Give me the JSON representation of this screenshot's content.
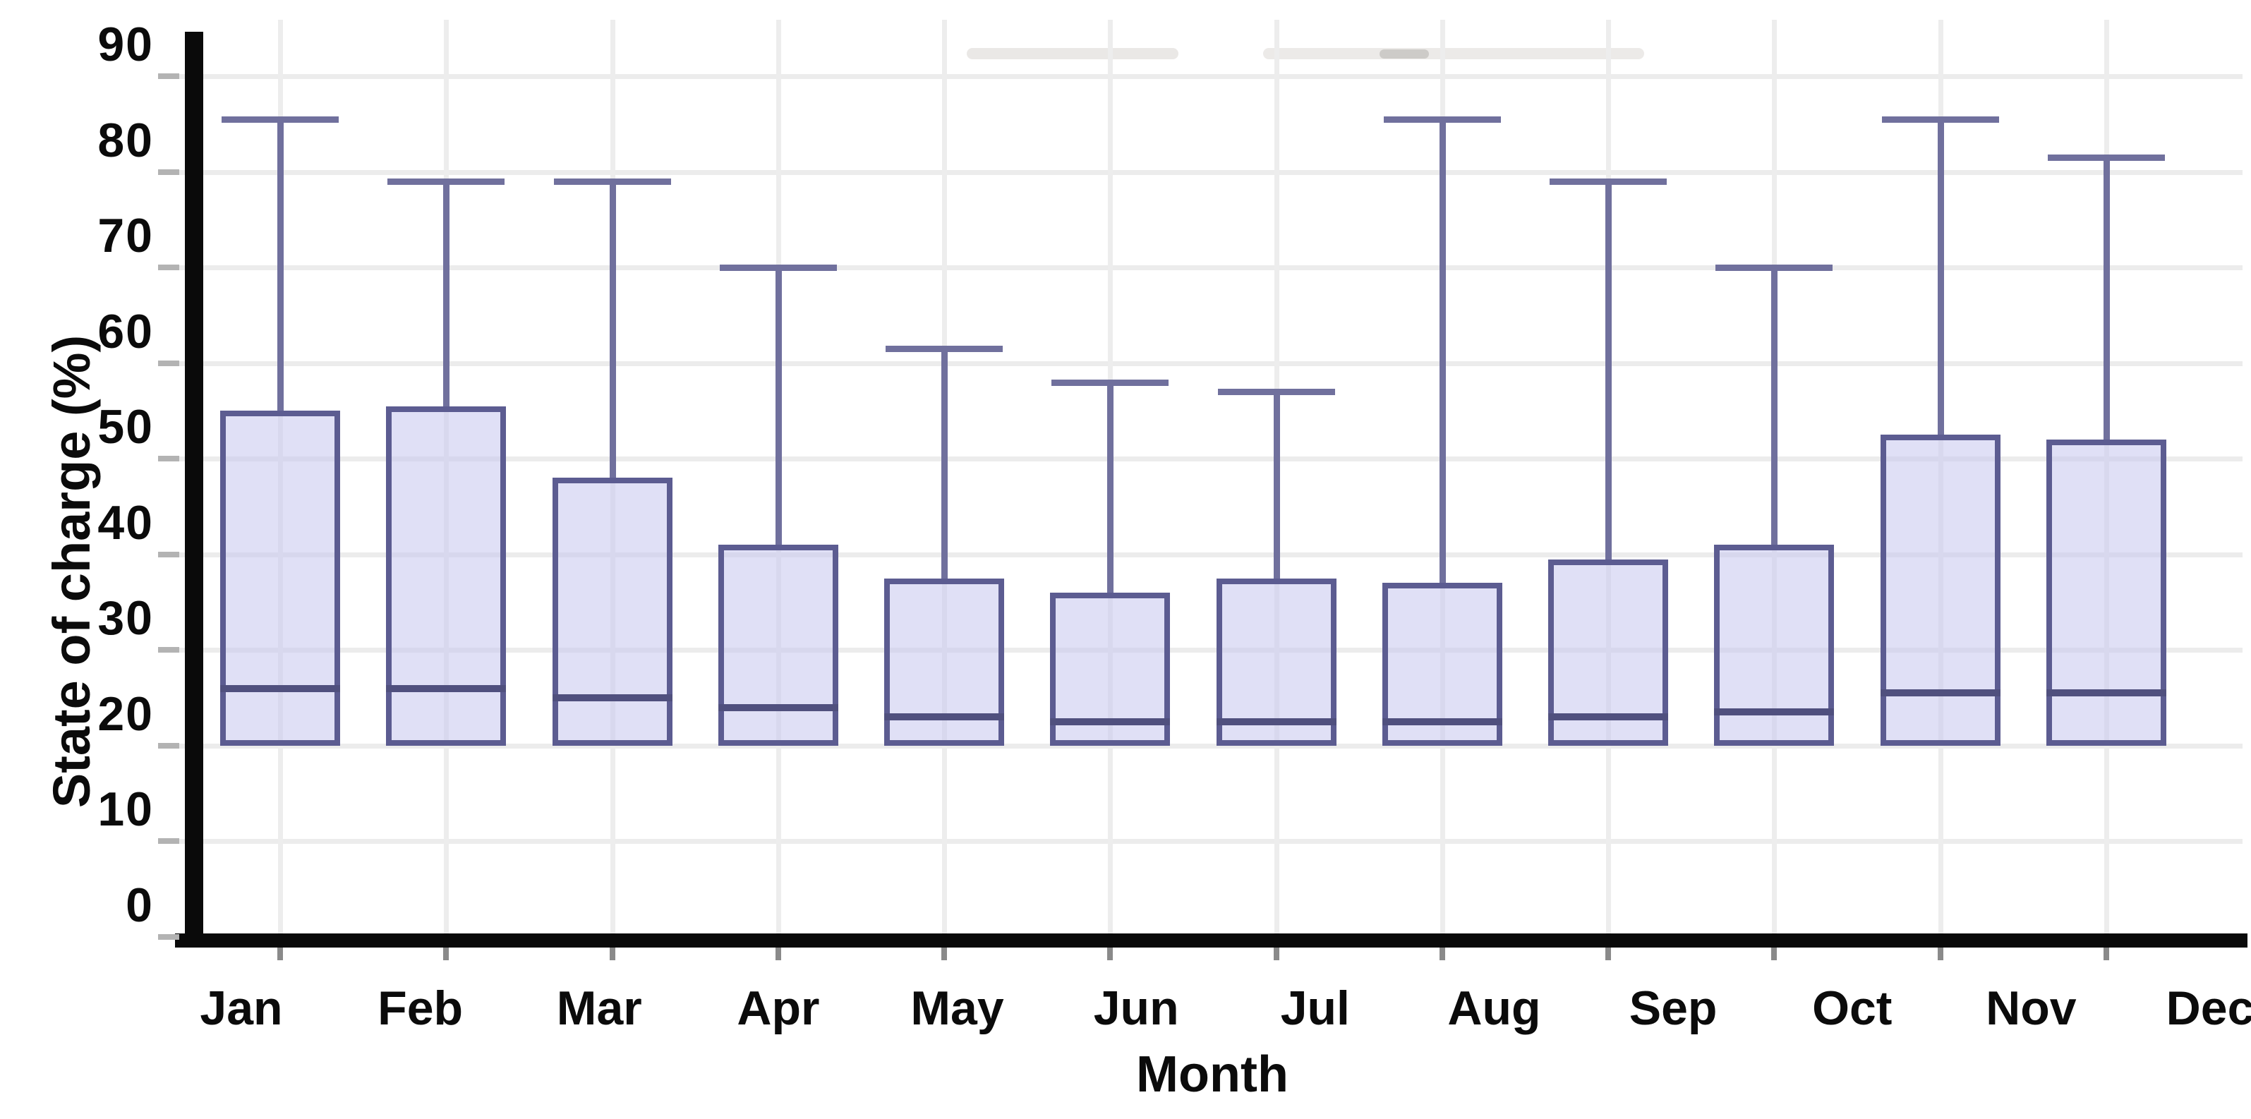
{
  "chart_data": {
    "type": "box",
    "title": "",
    "xlabel": "Month",
    "ylabel": "State of charge (%)",
    "ylim": [
      0,
      90
    ],
    "yticks": [
      0,
      10,
      20,
      30,
      40,
      50,
      60,
      70,
      80,
      90
    ],
    "categories": [
      "Jan",
      "Feb",
      "Mar",
      "Apr",
      "May",
      "Jun",
      "Jul",
      "Aug",
      "Sep",
      "Oct",
      "Nov",
      "Dec"
    ],
    "grid": "both",
    "legend": "none",
    "series": [
      {
        "name": "State of charge",
        "boxes": [
          {
            "month": "Jan",
            "min": 20,
            "q1": 20,
            "median": 26,
            "q3": 55,
            "max": 85.5
          },
          {
            "month": "Feb",
            "min": 20,
            "q1": 20,
            "median": 26,
            "q3": 55.5,
            "max": 79
          },
          {
            "month": "Mar",
            "min": 20,
            "q1": 20,
            "median": 25,
            "q3": 48,
            "max": 79
          },
          {
            "month": "Apr",
            "min": 20,
            "q1": 20,
            "median": 24,
            "q3": 41,
            "max": 70
          },
          {
            "month": "May",
            "min": 20,
            "q1": 20,
            "median": 23,
            "q3": 37.5,
            "max": 61.5
          },
          {
            "month": "Jun",
            "min": 20,
            "q1": 20,
            "median": 22.5,
            "q3": 36,
            "max": 58
          },
          {
            "month": "Jul",
            "min": 20,
            "q1": 20,
            "median": 22.5,
            "q3": 37.5,
            "max": 57
          },
          {
            "month": "Aug",
            "min": 20,
            "q1": 20,
            "median": 22.5,
            "q3": 37,
            "max": 85.5
          },
          {
            "month": "Sep",
            "min": 20,
            "q1": 20,
            "median": 23,
            "q3": 39.5,
            "max": 79
          },
          {
            "month": "Oct",
            "min": 20,
            "q1": 20,
            "median": 23.5,
            "q3": 41,
            "max": 70
          },
          {
            "month": "Nov",
            "min": 20,
            "q1": 20,
            "median": 25.5,
            "q3": 52.5,
            "max": 85.5
          },
          {
            "month": "Dec",
            "min": 20,
            "q1": 20,
            "median": 25.5,
            "q3": 52,
            "max": 81.5
          }
        ]
      }
    ],
    "style": {
      "box_fill": "#d9d9f1",
      "box_border": "#5c5c91",
      "median_color": "#50507e",
      "whisker_color": "#70709d",
      "axis_color": "#0a0a0a",
      "grid_color": "#ececec",
      "label_color": "#0b0b0b"
    }
  }
}
